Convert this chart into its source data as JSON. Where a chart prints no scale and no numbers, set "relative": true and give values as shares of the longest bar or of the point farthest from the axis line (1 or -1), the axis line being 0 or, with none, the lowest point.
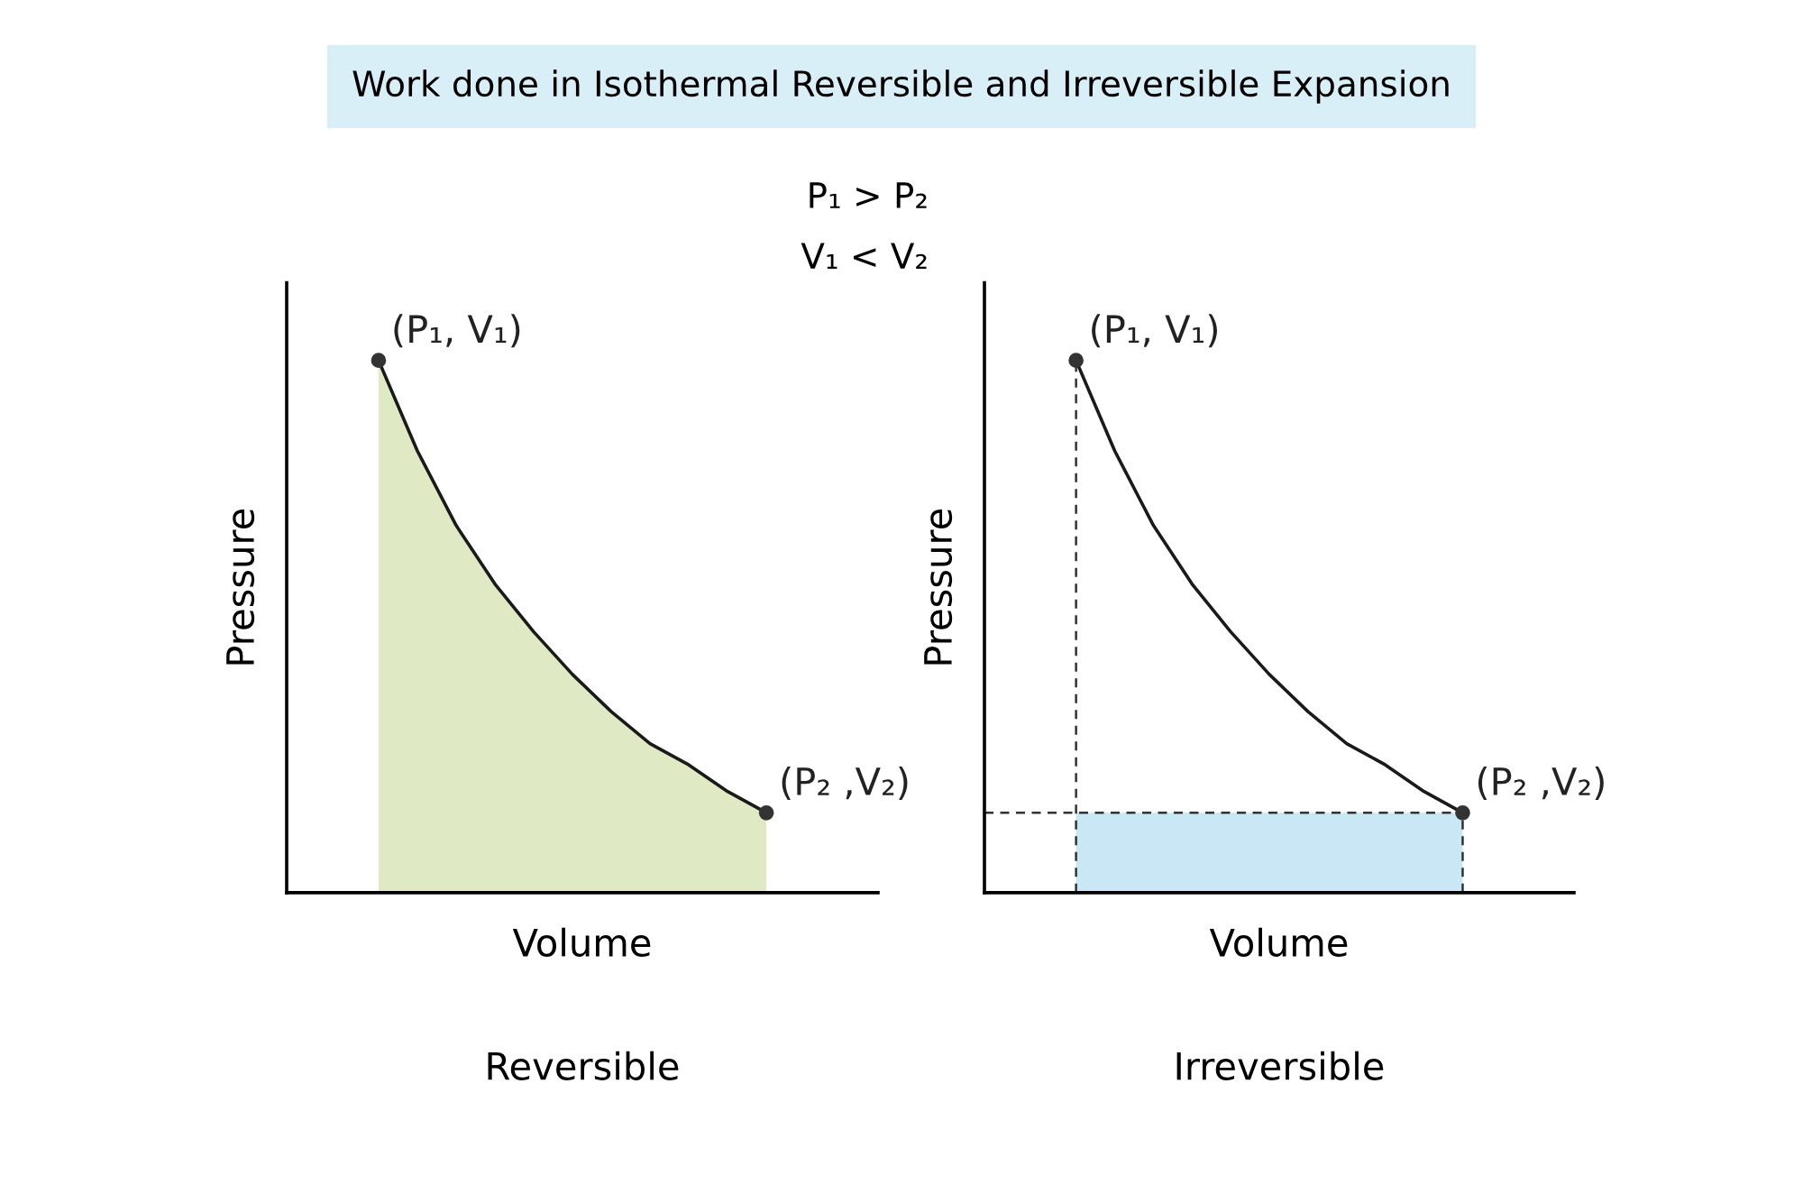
{
  "chart_data": [
    {
      "type": "area",
      "title": "Work done in Isothermal Reversible and Irreversible Expansion",
      "subtitle": "P₁ > P₂\nV₁ < V₂",
      "xlabel": "Volume",
      "ylabel": "Pressure",
      "relative": true,
      "tick_labels": false,
      "categories": [
        null,
        null,
        null,
        null,
        null,
        null,
        null,
        null,
        null,
        null,
        null
      ],
      "series": [
        {
          "color": "#dfe9c4",
          "values": [
            1,
            0.83,
            0.69,
            0.58,
            0.49,
            0.41,
            0.34,
            0.28,
            0.24,
            0.19,
            0.15
          ]
        }
      ],
      "annotations": [
        "(P₁, V₁)",
        "(P₂ ,V₂)",
        "Reversible"
      ]
    },
    {
      "type": "line",
      "xlabel": "Volume",
      "ylabel": "Pressure",
      "relative": true,
      "tick_labels": false,
      "categories": [
        null,
        null,
        null,
        null,
        null,
        null,
        null,
        null,
        null,
        null,
        null
      ],
      "series": [
        {
          "color": "#1a1a1a",
          "values": [
            1,
            0.83,
            0.69,
            0.58,
            0.49,
            0.41,
            0.34,
            0.28,
            0.24,
            0.19,
            0.15
          ]
        }
      ],
      "bands": [
        {
          "axis": "y",
          "from": 0,
          "to": 0.15,
          "color": "#c9e7f4"
        }
      ],
      "ref_lines": [
        {
          "axis": "y",
          "value": 0.15,
          "line_style": "dashed",
          "color": "#333333"
        }
      ],
      "annotations": [
        "(P₁, V₁)",
        "(P₂ ,V₂)",
        "Irreversible"
      ]
    }
  ]
}
